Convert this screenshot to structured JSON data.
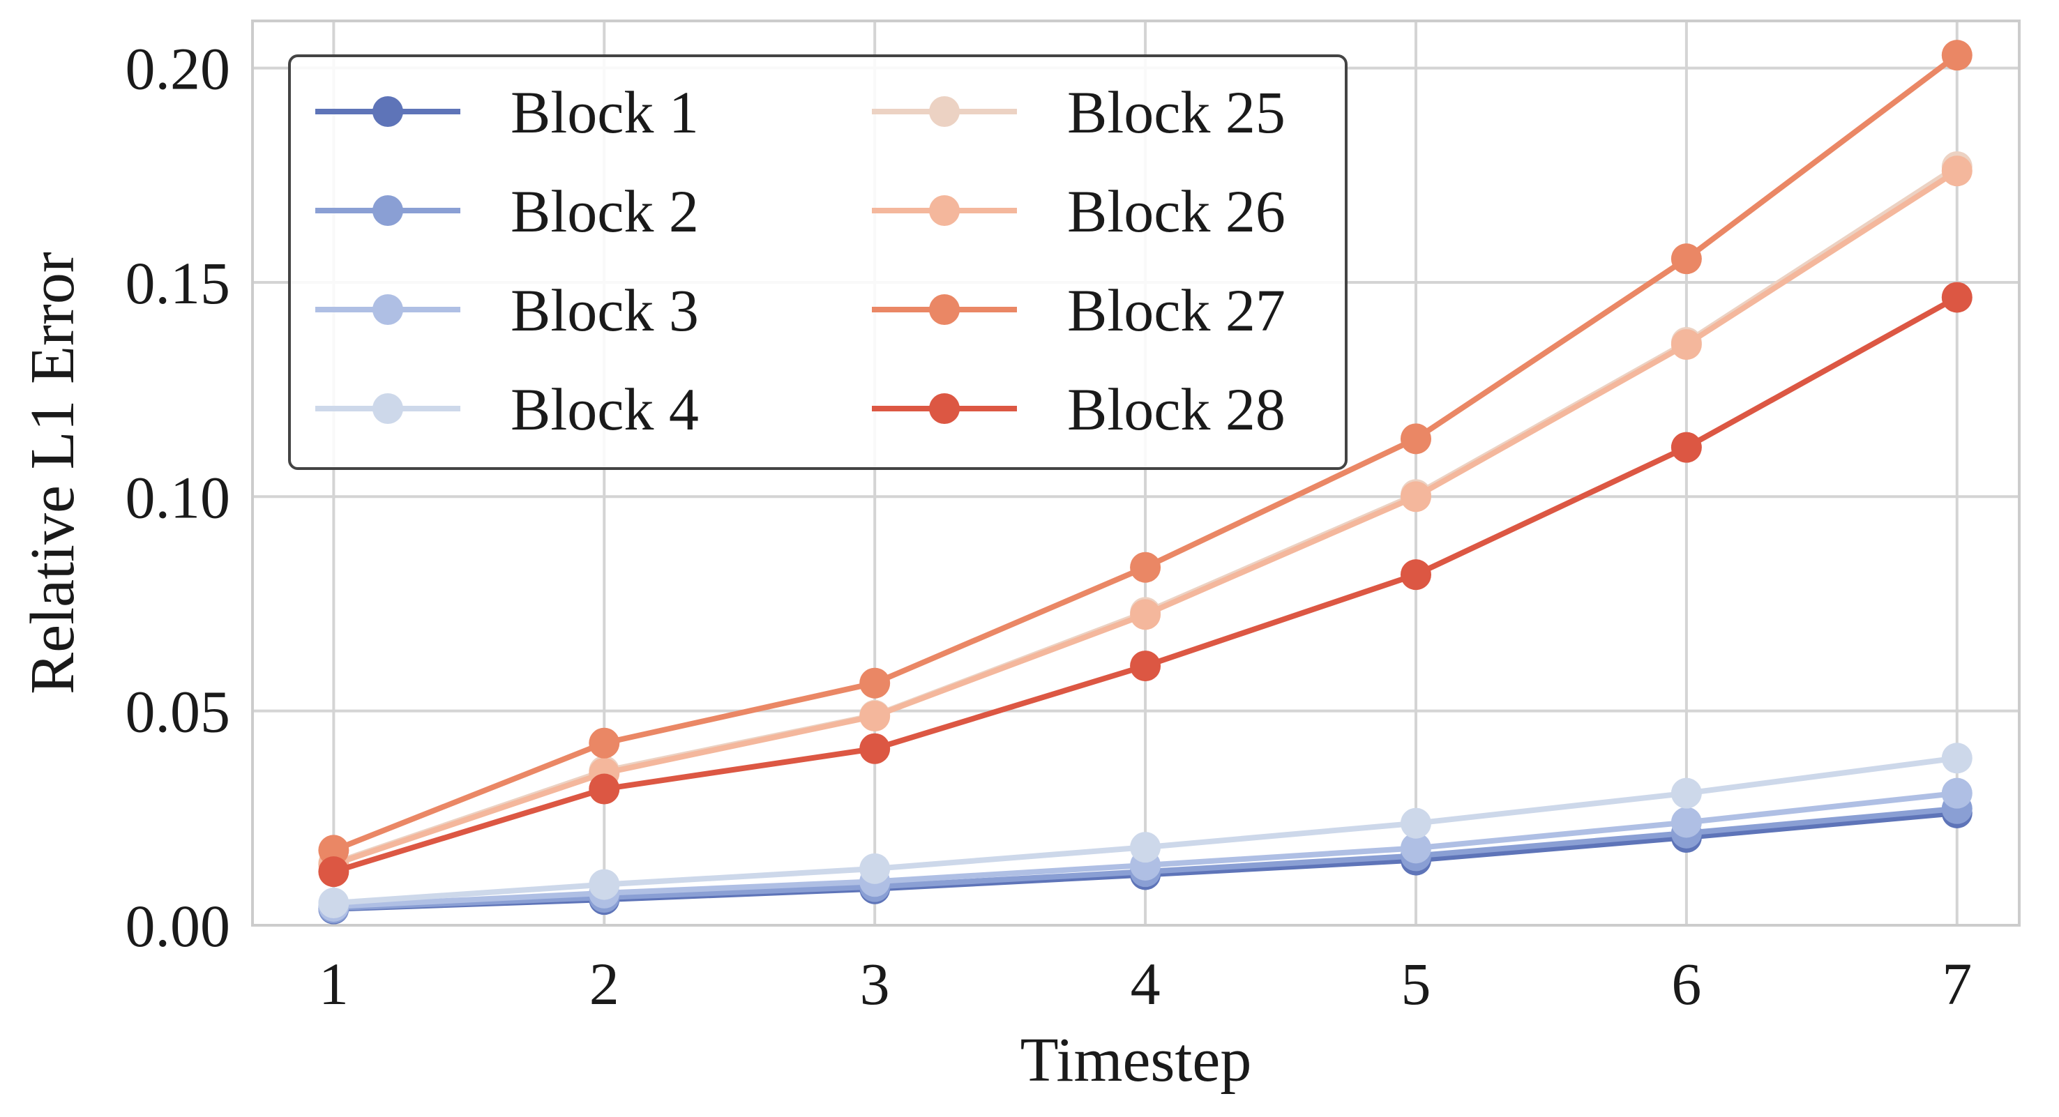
{
  "chart_data": {
    "type": "line",
    "xlabel": "Timestep",
    "ylabel": "Relative L1 Error",
    "x": [
      1,
      2,
      3,
      4,
      5,
      6,
      7
    ],
    "xticks": [
      "1",
      "2",
      "3",
      "4",
      "5",
      "6",
      "7"
    ],
    "xlim": [
      0.7,
      7.23
    ],
    "ylim": [
      0,
      0.211
    ],
    "yticks": [
      "0.00",
      "0.05",
      "0.10",
      "0.15",
      "0.20"
    ],
    "ytick_values": [
      0,
      0.05,
      0.1,
      0.15,
      0.2
    ],
    "grid": true,
    "legend_position": "top-left",
    "legend_columns": 2,
    "series": [
      {
        "name": "Block 1",
        "color": "#5e74b8",
        "values": [
          0.0038,
          0.006,
          0.0085,
          0.0118,
          0.0152,
          0.0205,
          0.0262
        ]
      },
      {
        "name": "Block 2",
        "color": "#8a9fd4",
        "values": [
          0.004,
          0.0065,
          0.009,
          0.0125,
          0.0162,
          0.0215,
          0.0272
        ]
      },
      {
        "name": "Block 3",
        "color": "#afbfe4",
        "values": [
          0.0044,
          0.0075,
          0.0102,
          0.014,
          0.018,
          0.024,
          0.0308
        ]
      },
      {
        "name": "Block 4",
        "color": "#cdd8ea",
        "values": [
          0.0052,
          0.0095,
          0.0132,
          0.0182,
          0.0238,
          0.0308,
          0.039
        ]
      },
      {
        "name": "Block 25",
        "color": "#ecd2c3",
        "values": [
          0.0145,
          0.036,
          0.049,
          0.073,
          0.1005,
          0.136,
          0.177
        ]
      },
      {
        "name": "Block 26",
        "color": "#f4b79c",
        "values": [
          0.0142,
          0.0355,
          0.0488,
          0.0725,
          0.1,
          0.1355,
          0.176
        ]
      },
      {
        "name": "Block 27",
        "color": "#ea8765",
        "values": [
          0.0175,
          0.0425,
          0.0565,
          0.0835,
          0.1135,
          0.1555,
          0.203
        ]
      },
      {
        "name": "Block 28",
        "color": "#dc5743",
        "values": [
          0.0125,
          0.0318,
          0.0412,
          0.0605,
          0.0818,
          0.1115,
          0.1465
        ]
      }
    ]
  }
}
